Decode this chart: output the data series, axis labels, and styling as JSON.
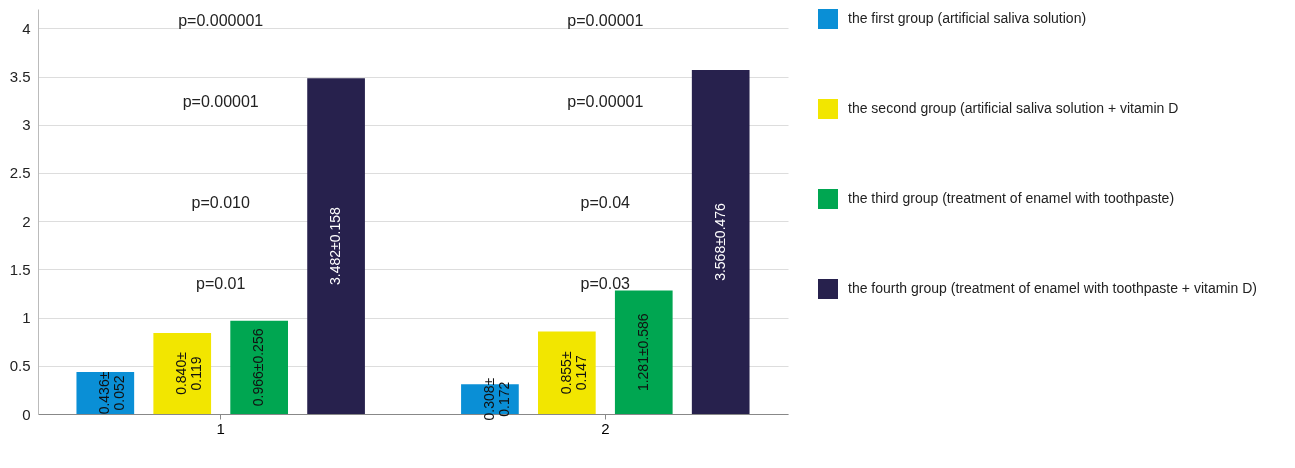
{
  "chart_data": {
    "type": "bar",
    "categories": [
      "1",
      "2"
    ],
    "series": [
      {
        "name": "the first group (artificial saliva solution)",
        "color": "#0a8fd6",
        "values": [
          0.436,
          0.308
        ],
        "value_labels": [
          "0.436±0.052",
          "0.308±0.172"
        ]
      },
      {
        "name": "the second group (artificial saliva solution + vitamin D",
        "color": "#f2e600",
        "values": [
          0.84,
          0.855
        ],
        "value_labels": [
          "0.840±0.119",
          "0.855±0.147"
        ]
      },
      {
        "name": "the third group (treatment of enamel with toothpaste)",
        "color": "#00a651",
        "values": [
          0.966,
          1.281
        ],
        "value_labels": [
          "0.966±0.256",
          "1.281±0.586"
        ]
      },
      {
        "name": "the fourth group (treatment of enamel with toothpaste + vitamin D)",
        "color": "#27214d",
        "values": [
          3.482,
          3.568
        ],
        "value_labels": [
          "3.482±0.158",
          "3.568±0.476"
        ]
      }
    ],
    "ylim": [
      0,
      4.2
    ],
    "yticks": [
      0,
      0.5,
      1,
      1.5,
      2,
      2.5,
      3,
      3.5,
      4
    ],
    "grid": "y",
    "legend": "right",
    "annotations": [
      "p=0.000001",
      "p=0.00001",
      "p=0.010",
      "p=0.01",
      "p=0.00001",
      "p=0.00001",
      "p=0.04",
      "p=0.03"
    ]
  }
}
